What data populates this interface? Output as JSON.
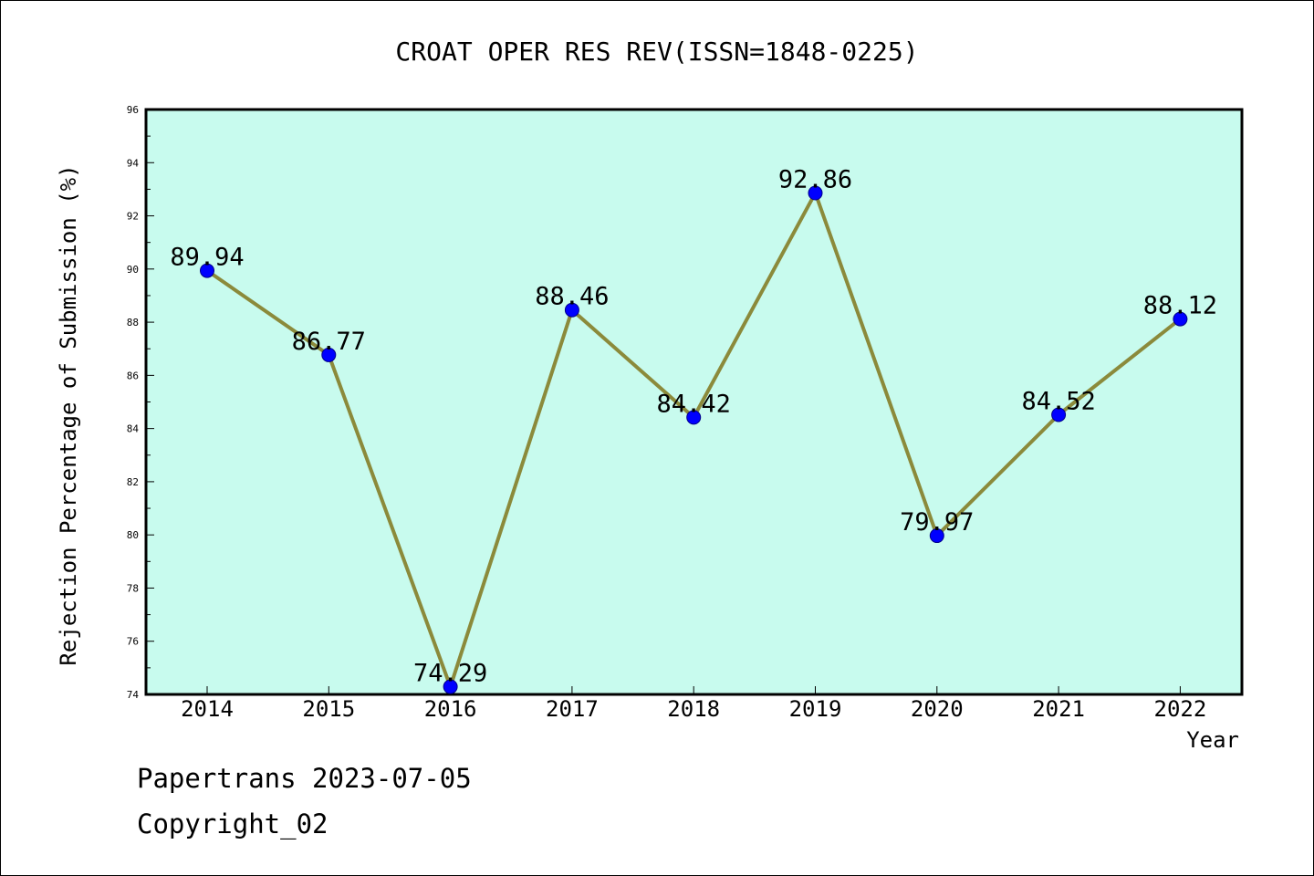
{
  "chart_data": {
    "type": "line",
    "title": "CROAT OPER RES REV(ISSN=1848-0225)",
    "xlabel": "Year",
    "ylabel": "Rejection Percentage of Submission (%)",
    "categories": [
      "2014",
      "2015",
      "2016",
      "2017",
      "2018",
      "2019",
      "2020",
      "2021",
      "2022"
    ],
    "series": [
      {
        "values": [
          89.94,
          86.77,
          74.29,
          88.46,
          84.42,
          92.86,
          79.97,
          84.52,
          88.12
        ],
        "labels": [
          "89.94",
          "86.77",
          "74.29",
          "88.46",
          "84.42",
          "92.86",
          "79.97",
          "84.52",
          "88.12"
        ]
      }
    ],
    "ylim": [
      74,
      96
    ],
    "yticks": [
      "74",
      "76",
      "78",
      "80",
      "82",
      "84",
      "86",
      "88",
      "90",
      "92",
      "94",
      "96"
    ],
    "grid": false,
    "legend": "none",
    "colors": {
      "plot_background": "#c8fbee",
      "line": "#8b8a3b",
      "marker": "#0000ff"
    }
  },
  "footer": {
    "source": "Papertrans 2023-07-05",
    "copyright": "Copyright_02"
  }
}
